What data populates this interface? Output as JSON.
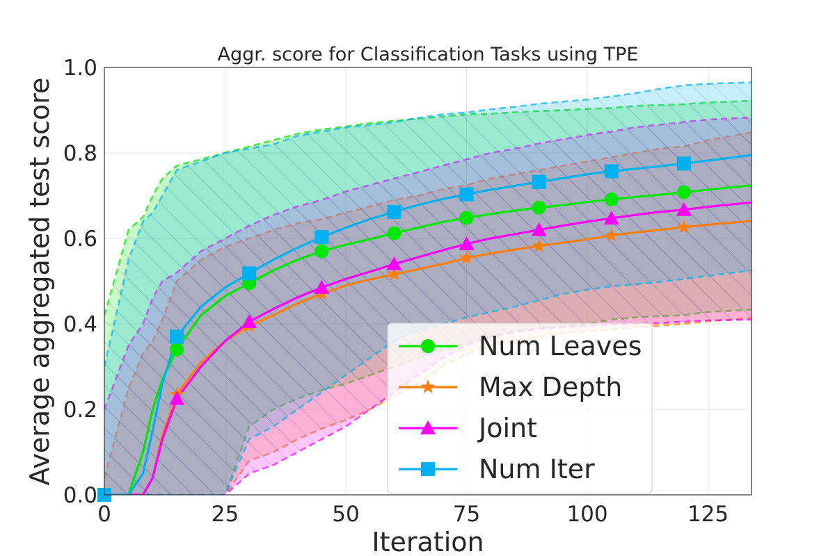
{
  "chart_data": {
    "type": "line",
    "title": "Aggr. score for Classification Tasks using TPE",
    "xlabel": "Iteration",
    "ylabel": "Average aggregated test score",
    "xlim": [
      0,
      134
    ],
    "ylim": [
      0.0,
      1.0
    ],
    "xticks": [
      0,
      25,
      50,
      75,
      100,
      125
    ],
    "yticks": [
      0.0,
      0.2,
      0.4,
      0.6,
      0.8,
      1.0
    ],
    "xtick_labels": [
      "0",
      "25",
      "50",
      "75",
      "100",
      "125"
    ],
    "ytick_labels": [
      "0.0",
      "0.2",
      "0.4",
      "0.6",
      "0.8",
      "1.0"
    ],
    "grid": true,
    "legend_position": "lower-right",
    "series": [
      {
        "name": "Num Leaves",
        "color": "#00e600",
        "marker": "circle",
        "x": [
          0,
          5,
          8,
          10,
          12,
          15,
          20,
          25,
          30,
          35,
          40,
          45,
          50,
          55,
          60,
          65,
          70,
          75,
          80,
          85,
          90,
          95,
          100,
          105,
          110,
          115,
          120,
          125,
          134
        ],
        "mean": [
          0.0,
          0.0,
          0.1,
          0.2,
          0.27,
          0.34,
          0.42,
          0.465,
          0.495,
          0.525,
          0.55,
          0.57,
          0.585,
          0.598,
          0.612,
          0.625,
          0.638,
          0.648,
          0.657,
          0.665,
          0.672,
          0.678,
          0.685,
          0.691,
          0.697,
          0.702,
          0.708,
          0.714,
          0.724
        ],
        "upper": [
          0.42,
          0.62,
          0.65,
          0.7,
          0.74,
          0.77,
          0.785,
          0.8,
          0.815,
          0.83,
          0.845,
          0.855,
          0.862,
          0.87,
          0.875,
          0.88,
          0.885,
          0.89,
          0.892,
          0.895,
          0.898,
          0.9,
          0.903,
          0.905,
          0.91,
          0.912,
          0.914,
          0.918,
          0.922
        ],
        "lower": [
          0.0,
          0.0,
          0.0,
          0.0,
          0.0,
          0.0,
          0.0,
          0.0,
          0.16,
          0.2,
          0.225,
          0.245,
          0.26,
          0.28,
          0.3,
          0.32,
          0.34,
          0.355,
          0.37,
          0.38,
          0.39,
          0.395,
          0.4,
          0.41,
          0.415,
          0.418,
          0.42,
          0.428,
          0.433
        ],
        "marker_x": [
          15,
          30,
          45,
          60,
          75,
          90,
          105,
          120
        ],
        "marker_y": [
          0.34,
          0.495,
          0.57,
          0.612,
          0.648,
          0.672,
          0.691,
          0.708
        ]
      },
      {
        "name": "Max Depth",
        "color": "#ff7f0e",
        "marker": "star",
        "x": [
          0,
          5,
          8,
          10,
          12,
          15,
          20,
          25,
          30,
          35,
          40,
          45,
          50,
          55,
          60,
          65,
          70,
          75,
          80,
          85,
          90,
          95,
          100,
          105,
          110,
          115,
          120,
          125,
          134
        ],
        "mean": [
          0.0,
          0.0,
          0.0,
          0.04,
          0.14,
          0.235,
          0.31,
          0.36,
          0.395,
          0.42,
          0.448,
          0.47,
          0.49,
          0.504,
          0.516,
          0.528,
          0.54,
          0.554,
          0.565,
          0.574,
          0.582,
          0.59,
          0.598,
          0.607,
          0.614,
          0.62,
          0.626,
          0.632,
          0.641
        ],
        "upper": [
          0.04,
          0.25,
          0.33,
          0.36,
          0.41,
          0.5,
          0.55,
          0.58,
          0.6,
          0.62,
          0.635,
          0.645,
          0.66,
          0.675,
          0.69,
          0.7,
          0.715,
          0.725,
          0.74,
          0.75,
          0.76,
          0.77,
          0.78,
          0.79,
          0.8,
          0.81,
          0.815,
          0.83,
          0.848
        ],
        "lower": [
          0.0,
          0.0,
          0.0,
          0.0,
          0.0,
          0.0,
          0.0,
          0.0,
          0.08,
          0.1,
          0.13,
          0.155,
          0.175,
          0.2,
          0.23,
          0.26,
          0.3,
          0.33,
          0.35,
          0.36,
          0.37,
          0.378,
          0.383,
          0.387,
          0.392,
          0.396,
          0.4,
          0.406,
          0.414
        ],
        "marker_x": [
          15,
          30,
          45,
          60,
          75,
          90,
          105,
          120
        ],
        "marker_y": [
          0.235,
          0.395,
          0.47,
          0.516,
          0.554,
          0.582,
          0.607,
          0.626
        ]
      },
      {
        "name": "Joint",
        "color": "#ff00ff",
        "marker": "triangle",
        "x": [
          0,
          5,
          8,
          10,
          12,
          15,
          20,
          25,
          30,
          35,
          40,
          45,
          50,
          55,
          60,
          65,
          70,
          75,
          80,
          85,
          90,
          95,
          100,
          105,
          110,
          115,
          120,
          125,
          134
        ],
        "mean": [
          0.0,
          0.0,
          0.0,
          0.04,
          0.13,
          0.225,
          0.3,
          0.36,
          0.405,
          0.435,
          0.462,
          0.485,
          0.505,
          0.522,
          0.54,
          0.556,
          0.572,
          0.587,
          0.6,
          0.61,
          0.62,
          0.63,
          0.639,
          0.647,
          0.655,
          0.662,
          0.667,
          0.674,
          0.684
        ],
        "upper": [
          0.2,
          0.35,
          0.4,
          0.46,
          0.5,
          0.52,
          0.57,
          0.6,
          0.63,
          0.655,
          0.675,
          0.69,
          0.71,
          0.725,
          0.74,
          0.755,
          0.77,
          0.785,
          0.8,
          0.81,
          0.822,
          0.832,
          0.842,
          0.85,
          0.86,
          0.866,
          0.872,
          0.878,
          0.883
        ],
        "lower": [
          0.0,
          0.0,
          0.0,
          0.0,
          0.0,
          0.0,
          0.0,
          0.0,
          0.05,
          0.07,
          0.1,
          0.13,
          0.16,
          0.2,
          0.24,
          0.28,
          0.32,
          0.35,
          0.37,
          0.382,
          0.388,
          0.392,
          0.396,
          0.398,
          0.4,
          0.402,
          0.405,
          0.408,
          0.41
        ],
        "marker_x": [
          15,
          30,
          45,
          60,
          75,
          90,
          105,
          120
        ],
        "marker_y": [
          0.225,
          0.405,
          0.485,
          0.54,
          0.587,
          0.62,
          0.647,
          0.667
        ]
      },
      {
        "name": "Num Iter",
        "color": "#00b0f0",
        "marker": "square",
        "x": [
          0,
          5,
          8,
          10,
          12,
          15,
          20,
          25,
          30,
          35,
          40,
          45,
          50,
          55,
          60,
          65,
          70,
          75,
          80,
          85,
          90,
          95,
          100,
          105,
          110,
          115,
          120,
          125,
          134
        ],
        "mean": [
          0.0,
          0.0,
          0.05,
          0.15,
          0.26,
          0.37,
          0.44,
          0.485,
          0.518,
          0.55,
          0.578,
          0.603,
          0.625,
          0.645,
          0.662,
          0.678,
          0.692,
          0.703,
          0.714,
          0.723,
          0.732,
          0.741,
          0.75,
          0.757,
          0.763,
          0.769,
          0.775,
          0.782,
          0.795
        ],
        "upper": [
          0.3,
          0.55,
          0.64,
          0.66,
          0.7,
          0.76,
          0.78,
          0.8,
          0.81,
          0.82,
          0.84,
          0.85,
          0.86,
          0.865,
          0.872,
          0.882,
          0.89,
          0.895,
          0.902,
          0.908,
          0.915,
          0.92,
          0.925,
          0.932,
          0.94,
          0.95,
          0.958,
          0.962,
          0.965
        ],
        "lower": [
          0.0,
          0.0,
          0.0,
          0.0,
          0.0,
          0.0,
          0.0,
          0.0,
          0.13,
          0.16,
          0.2,
          0.24,
          0.28,
          0.32,
          0.36,
          0.385,
          0.4,
          0.415,
          0.428,
          0.44,
          0.455,
          0.47,
          0.48,
          0.488,
          0.492,
          0.498,
          0.505,
          0.512,
          0.525
        ],
        "marker_x": [
          0,
          15,
          30,
          45,
          60,
          75,
          90,
          105,
          120
        ],
        "marker_y": [
          0.0,
          0.37,
          0.518,
          0.603,
          0.662,
          0.703,
          0.732,
          0.757,
          0.775
        ]
      }
    ]
  }
}
